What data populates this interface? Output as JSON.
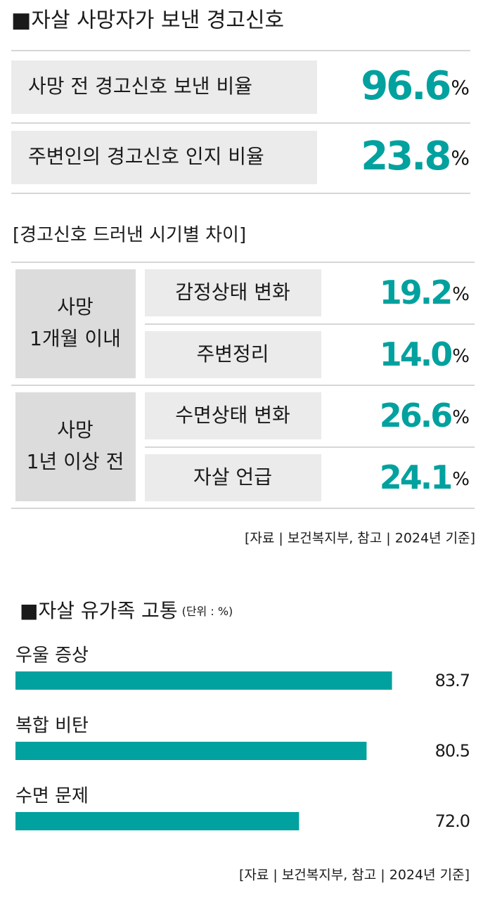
{
  "header": {
    "title": "■자살 사망자가 보낸 경고신호"
  },
  "summary": [
    {
      "label": "사망 전 경고신호 보낸 비율",
      "value": "96.6",
      "unit": "%"
    },
    {
      "label": "주변인의 경고신호 인지 비율",
      "value": "23.8",
      "unit": "%"
    }
  ],
  "timing": {
    "title": "[경고신호 드러낸 시기별 차이]",
    "groups": [
      {
        "label": [
          "사망",
          "1개월 이내"
        ],
        "items": [
          {
            "label": "감정상태 변화",
            "value": "19.2",
            "unit": "%"
          },
          {
            "label": "주변정리",
            "value": "14.0",
            "unit": "%"
          }
        ]
      },
      {
        "label": [
          "사망",
          "1년 이상 전"
        ],
        "items": [
          {
            "label": "수면상태 변화",
            "value": "26.6",
            "unit": "%"
          },
          {
            "label": "자살 언급",
            "value": "24.1",
            "unit": "%"
          }
        ]
      }
    ],
    "source": "[자료 | 보건복지부, 참고 | 2024년 기준]"
  },
  "chart_data": {
    "type": "bar",
    "orientation": "horizontal",
    "title": "■자살 유가족 고통",
    "subtitle": "(단위 : %)",
    "categories": [
      "우울 증상",
      "복합 비탄",
      "수면 문제"
    ],
    "values": [
      83.7,
      80.5,
      72.0
    ],
    "value_labels": [
      "83.7",
      "80.5",
      "72.0"
    ],
    "color": "#00a19e",
    "xlim": [
      36.3,
      84.8
    ],
    "source": "[자료 | 보건복지부, 참고 | 2024년 기준]"
  }
}
